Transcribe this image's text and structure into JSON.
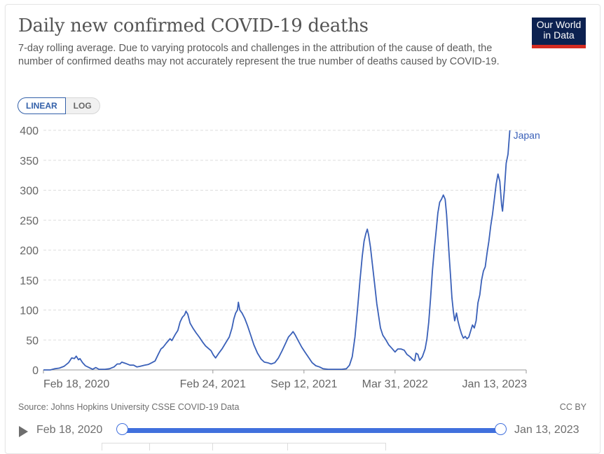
{
  "header": {
    "title": "Daily new confirmed COVID-19 deaths",
    "subtitle": "7-day rolling average. Due to varying protocols and challenges in the attribution of the cause of death, the number of confirmed deaths may not accurately represent the true number of deaths caused by COVID-19.",
    "logo_line1": "Our World",
    "logo_line2": "in Data"
  },
  "controls": {
    "scale_options": [
      "LINEAR",
      "LOG"
    ],
    "scale_selected": "LINEAR"
  },
  "footer": {
    "source": "Source: Johns Hopkins University CSSE COVID-19 Data",
    "license": "CC BY"
  },
  "timeline": {
    "start_label": "Feb 18, 2020",
    "end_label": "Jan 13, 2023",
    "range_start_fraction": 0,
    "range_end_fraction": 1,
    "play_icon": "play-icon"
  },
  "colors": {
    "line": "#3a60b8",
    "logo_bg": "#0c2150",
    "logo_accent": "#d42b21",
    "timeline_accent": "#4170dd",
    "grid": "#dddddd",
    "axis_text": "#666666"
  },
  "chart_data": {
    "type": "line",
    "title": "Daily new confirmed COVID-19 deaths",
    "xlabel": "",
    "ylabel": "",
    "x_unit": "days since Feb 18, 2020",
    "x_range": [
      0,
      1060
    ],
    "ylim": [
      0,
      400
    ],
    "yticks": [
      0,
      50,
      100,
      150,
      200,
      250,
      300,
      350,
      400
    ],
    "xticks": [
      {
        "day": 0,
        "label": "Feb 18, 2020"
      },
      {
        "day": 372,
        "label": "Feb 24, 2021"
      },
      {
        "day": 572,
        "label": "Sep 12, 2021"
      },
      {
        "day": 772,
        "label": "Mar 31, 2022"
      },
      {
        "day": 1060,
        "label": "Jan 13, 2023"
      }
    ],
    "grid": "horizontal-dashed",
    "legend": "end-of-line label",
    "series": [
      {
        "name": "Japan",
        "points": [
          [
            0,
            0
          ],
          [
            15,
            0
          ],
          [
            25,
            2
          ],
          [
            35,
            3
          ],
          [
            45,
            6
          ],
          [
            55,
            12
          ],
          [
            62,
            20
          ],
          [
            68,
            19
          ],
          [
            72,
            23
          ],
          [
            77,
            17
          ],
          [
            80,
            19
          ],
          [
            86,
            12
          ],
          [
            92,
            7
          ],
          [
            100,
            4
          ],
          [
            108,
            1
          ],
          [
            115,
            4
          ],
          [
            122,
            1
          ],
          [
            135,
            1
          ],
          [
            145,
            2
          ],
          [
            155,
            5
          ],
          [
            162,
            10
          ],
          [
            168,
            10
          ],
          [
            172,
            13
          ],
          [
            180,
            11
          ],
          [
            190,
            8
          ],
          [
            198,
            8
          ],
          [
            205,
            5
          ],
          [
            212,
            6
          ],
          [
            222,
            8
          ],
          [
            230,
            9
          ],
          [
            238,
            12
          ],
          [
            245,
            15
          ],
          [
            252,
            26
          ],
          [
            258,
            35
          ],
          [
            263,
            38
          ],
          [
            270,
            45
          ],
          [
            278,
            52
          ],
          [
            282,
            49
          ],
          [
            290,
            60
          ],
          [
            295,
            66
          ],
          [
            300,
            80
          ],
          [
            305,
            88
          ],
          [
            310,
            92
          ],
          [
            313,
            98
          ],
          [
            317,
            93
          ],
          [
            322,
            78
          ],
          [
            328,
            70
          ],
          [
            335,
            62
          ],
          [
            342,
            55
          ],
          [
            350,
            46
          ],
          [
            356,
            40
          ],
          [
            362,
            36
          ],
          [
            368,
            32
          ],
          [
            373,
            25
          ],
          [
            378,
            20
          ],
          [
            385,
            28
          ],
          [
            392,
            35
          ],
          [
            400,
            45
          ],
          [
            408,
            55
          ],
          [
            414,
            70
          ],
          [
            418,
            85
          ],
          [
            422,
            95
          ],
          [
            426,
            100
          ],
          [
            428,
            113
          ],
          [
            431,
            100
          ],
          [
            436,
            95
          ],
          [
            442,
            86
          ],
          [
            448,
            74
          ],
          [
            455,
            58
          ],
          [
            462,
            42
          ],
          [
            470,
            28
          ],
          [
            478,
            18
          ],
          [
            485,
            13
          ],
          [
            492,
            12
          ],
          [
            500,
            10
          ],
          [
            508,
            12
          ],
          [
            516,
            20
          ],
          [
            524,
            32
          ],
          [
            532,
            45
          ],
          [
            538,
            55
          ],
          [
            544,
            60
          ],
          [
            548,
            64
          ],
          [
            553,
            58
          ],
          [
            560,
            48
          ],
          [
            567,
            38
          ],
          [
            574,
            30
          ],
          [
            582,
            21
          ],
          [
            590,
            12
          ],
          [
            598,
            7
          ],
          [
            606,
            5
          ],
          [
            614,
            2
          ],
          [
            625,
            1
          ],
          [
            640,
            1
          ],
          [
            655,
            1
          ],
          [
            665,
            2
          ],
          [
            672,
            8
          ],
          [
            678,
            22
          ],
          [
            684,
            55
          ],
          [
            690,
            105
          ],
          [
            695,
            150
          ],
          [
            700,
            190
          ],
          [
            704,
            215
          ],
          [
            708,
            228
          ],
          [
            711,
            235
          ],
          [
            714,
            225
          ],
          [
            718,
            205
          ],
          [
            722,
            178
          ],
          [
            727,
            145
          ],
          [
            732,
            110
          ],
          [
            736,
            90
          ],
          [
            740,
            70
          ],
          [
            745,
            58
          ],
          [
            752,
            50
          ],
          [
            758,
            42
          ],
          [
            765,
            36
          ],
          [
            772,
            30
          ],
          [
            778,
            35
          ],
          [
            785,
            35
          ],
          [
            792,
            33
          ],
          [
            798,
            26
          ],
          [
            805,
            22
          ],
          [
            810,
            18
          ],
          [
            815,
            15
          ],
          [
            818,
            28
          ],
          [
            822,
            26
          ],
          [
            826,
            16
          ],
          [
            832,
            22
          ],
          [
            838,
            35
          ],
          [
            842,
            52
          ],
          [
            846,
            80
          ],
          [
            850,
            120
          ],
          [
            854,
            165
          ],
          [
            858,
            200
          ],
          [
            862,
            230
          ],
          [
            866,
            262
          ],
          [
            870,
            280
          ],
          [
            874,
            285
          ],
          [
            878,
            292
          ],
          [
            882,
            285
          ],
          [
            885,
            260
          ],
          [
            888,
            225
          ],
          [
            891,
            190
          ],
          [
            894,
            155
          ],
          [
            897,
            120
          ],
          [
            900,
            98
          ],
          [
            903,
            82
          ],
          [
            907,
            95
          ],
          [
            910,
            82
          ],
          [
            914,
            70
          ],
          [
            918,
            60
          ],
          [
            922,
            53
          ],
          [
            926,
            56
          ],
          [
            930,
            52
          ],
          [
            934,
            55
          ],
          [
            938,
            65
          ],
          [
            942,
            75
          ],
          [
            946,
            70
          ],
          [
            950,
            82
          ],
          [
            954,
            112
          ],
          [
            958,
            125
          ],
          [
            962,
            150
          ],
          [
            966,
            165
          ],
          [
            970,
            172
          ],
          [
            974,
            195
          ],
          [
            978,
            215
          ],
          [
            982,
            240
          ],
          [
            986,
            260
          ],
          [
            990,
            285
          ],
          [
            994,
            310
          ],
          [
            998,
            327
          ],
          [
            1002,
            315
          ],
          [
            1006,
            275
          ],
          [
            1008,
            265
          ],
          [
            1012,
            300
          ],
          [
            1016,
            345
          ],
          [
            1020,
            360
          ],
          [
            1024,
            400
          ]
        ]
      }
    ]
  }
}
